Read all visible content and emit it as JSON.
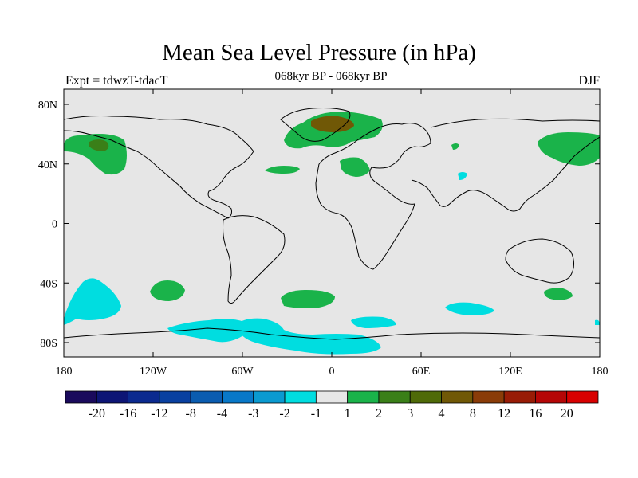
{
  "title": "Mean Sea Level Pressure (in hPa)",
  "subtitle": "068kyr BP - 068kyr BP",
  "left_label": "Expt = tdwzT-tdacT",
  "right_label": "DJF",
  "map": {
    "background_color": "#e6e6e6",
    "coastline_color": "#000000",
    "x_ticks": [
      "180",
      "120W",
      "60W",
      "0",
      "60E",
      "120E",
      "180"
    ],
    "y_ticks": [
      "80N",
      "40N",
      "0",
      "40S",
      "80S"
    ],
    "anomaly_regions": [
      {
        "name": "north-pacific-positive",
        "level": "2"
      },
      {
        "name": "north-pacific-positive-core",
        "level": "3"
      },
      {
        "name": "greenland-positive",
        "level": "2"
      },
      {
        "name": "greenland-positive-core",
        "level": "4"
      },
      {
        "name": "north-atlantic-positive-strip",
        "level": "2"
      },
      {
        "name": "mediterranean-positive",
        "level": "2"
      },
      {
        "name": "asia-small-positive",
        "level": "2"
      },
      {
        "name": "northwest-pacific-positive",
        "level": "2"
      },
      {
        "name": "south-pacific-positive",
        "level": "2"
      },
      {
        "name": "south-atlantic-positive",
        "level": "2"
      },
      {
        "name": "south-of-australia-positive",
        "level": "2"
      },
      {
        "name": "southeast-pacific-negative",
        "level": "-1"
      },
      {
        "name": "southern-indian-ocean-negative",
        "level": "-1"
      },
      {
        "name": "southern-atlantic-negative",
        "level": "-1"
      },
      {
        "name": "antarctic-negative",
        "level": "-1"
      },
      {
        "name": "weddell-negative",
        "level": "-1"
      },
      {
        "name": "arabian-sea-negative",
        "level": "-1"
      }
    ]
  },
  "colorbar": {
    "colors": [
      "#1a0a5c",
      "#0d1575",
      "#0b2a8f",
      "#0940a0",
      "#0a5cb0",
      "#0878c8",
      "#0a9ad0",
      "#00dde0",
      "#e6e6e6",
      "#1ab34a",
      "#3a7f18",
      "#4f6a08",
      "#705806",
      "#8a3c08",
      "#981c06",
      "#b50606",
      "#d80000"
    ],
    "labels": [
      "-20",
      "-16",
      "-12",
      "-8",
      "-4",
      "-3",
      "-2",
      "-1",
      "1",
      "2",
      "3",
      "4",
      "8",
      "12",
      "16",
      "20"
    ]
  }
}
